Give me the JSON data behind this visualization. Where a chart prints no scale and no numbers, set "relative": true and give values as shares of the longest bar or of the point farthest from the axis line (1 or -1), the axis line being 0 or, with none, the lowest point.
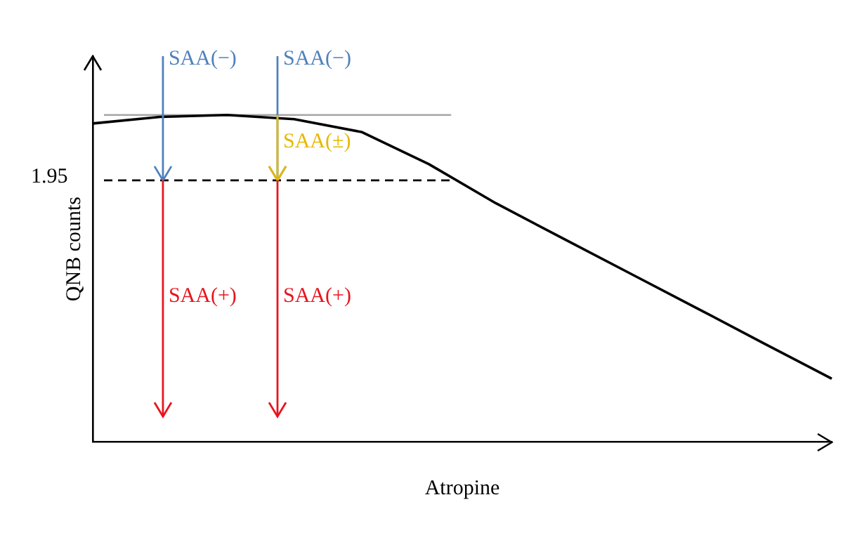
{
  "chart_data": {
    "type": "line",
    "relative": true,
    "xlabel": "Atropine",
    "ylabel": "QNB counts",
    "categories": [
      null,
      null,
      null,
      null,
      null,
      null,
      null,
      null,
      null,
      null,
      null,
      null
    ],
    "series": [
      {
        "color": "#000000",
        "values": [
          0.974,
          0.994,
          1.0,
          0.987,
          0.948,
          0.85,
          0.73,
          0.622,
          0.515,
          0.408,
          0.3,
          0.193
        ]
      }
    ],
    "ref_lines": [
      {
        "axis": "y",
        "value": 0.8,
        "line_style": "dashed",
        "color": "#000000"
      },
      {
        "axis": "y",
        "value": 1.0,
        "color": "#a6a6a6"
      }
    ],
    "annotations": [
      "SAA(−)",
      "SAA(−)",
      "SAA(±)",
      "SAA(+)",
      "SAA(+)",
      "1.95"
    ],
    "grid": false,
    "legend": false,
    "marker": "none",
    "line_style": "solid"
  }
}
